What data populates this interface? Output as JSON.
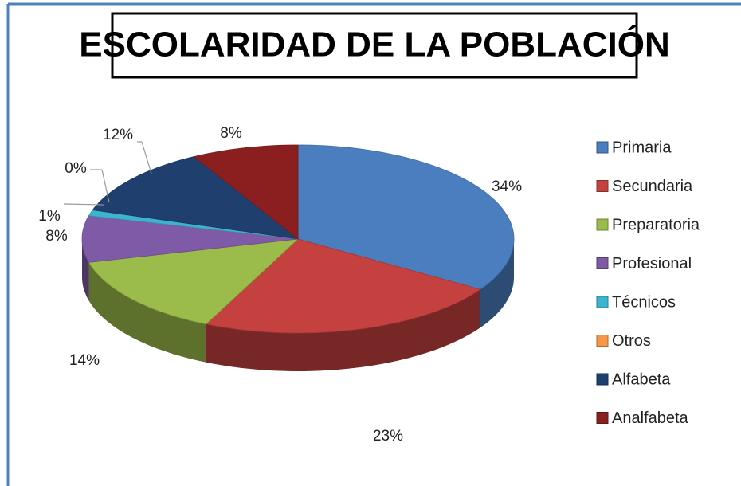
{
  "chart_data": {
    "type": "pie3d",
    "title": "ESCOLARIDAD DE LA POBLACIÓN",
    "categories": [
      "Primaria",
      "Secundaria",
      "Preparatoria",
      "Profesional",
      "Técnicos",
      "Otros",
      "Alfabeta",
      "Analfabeta"
    ],
    "values": [
      34,
      23,
      14,
      8,
      1,
      0,
      12,
      8
    ],
    "value_labels": [
      "34%",
      "23%",
      "14%",
      "8%",
      "1%",
      "0%",
      "12%",
      "8%"
    ],
    "colors": [
      "#4a7ebf",
      "#c4413f",
      "#9bbb4a",
      "#7f5aa6",
      "#3bb4d0",
      "#f79646",
      "#1f3f6e",
      "#8b1f1f"
    ],
    "legend": "right"
  }
}
